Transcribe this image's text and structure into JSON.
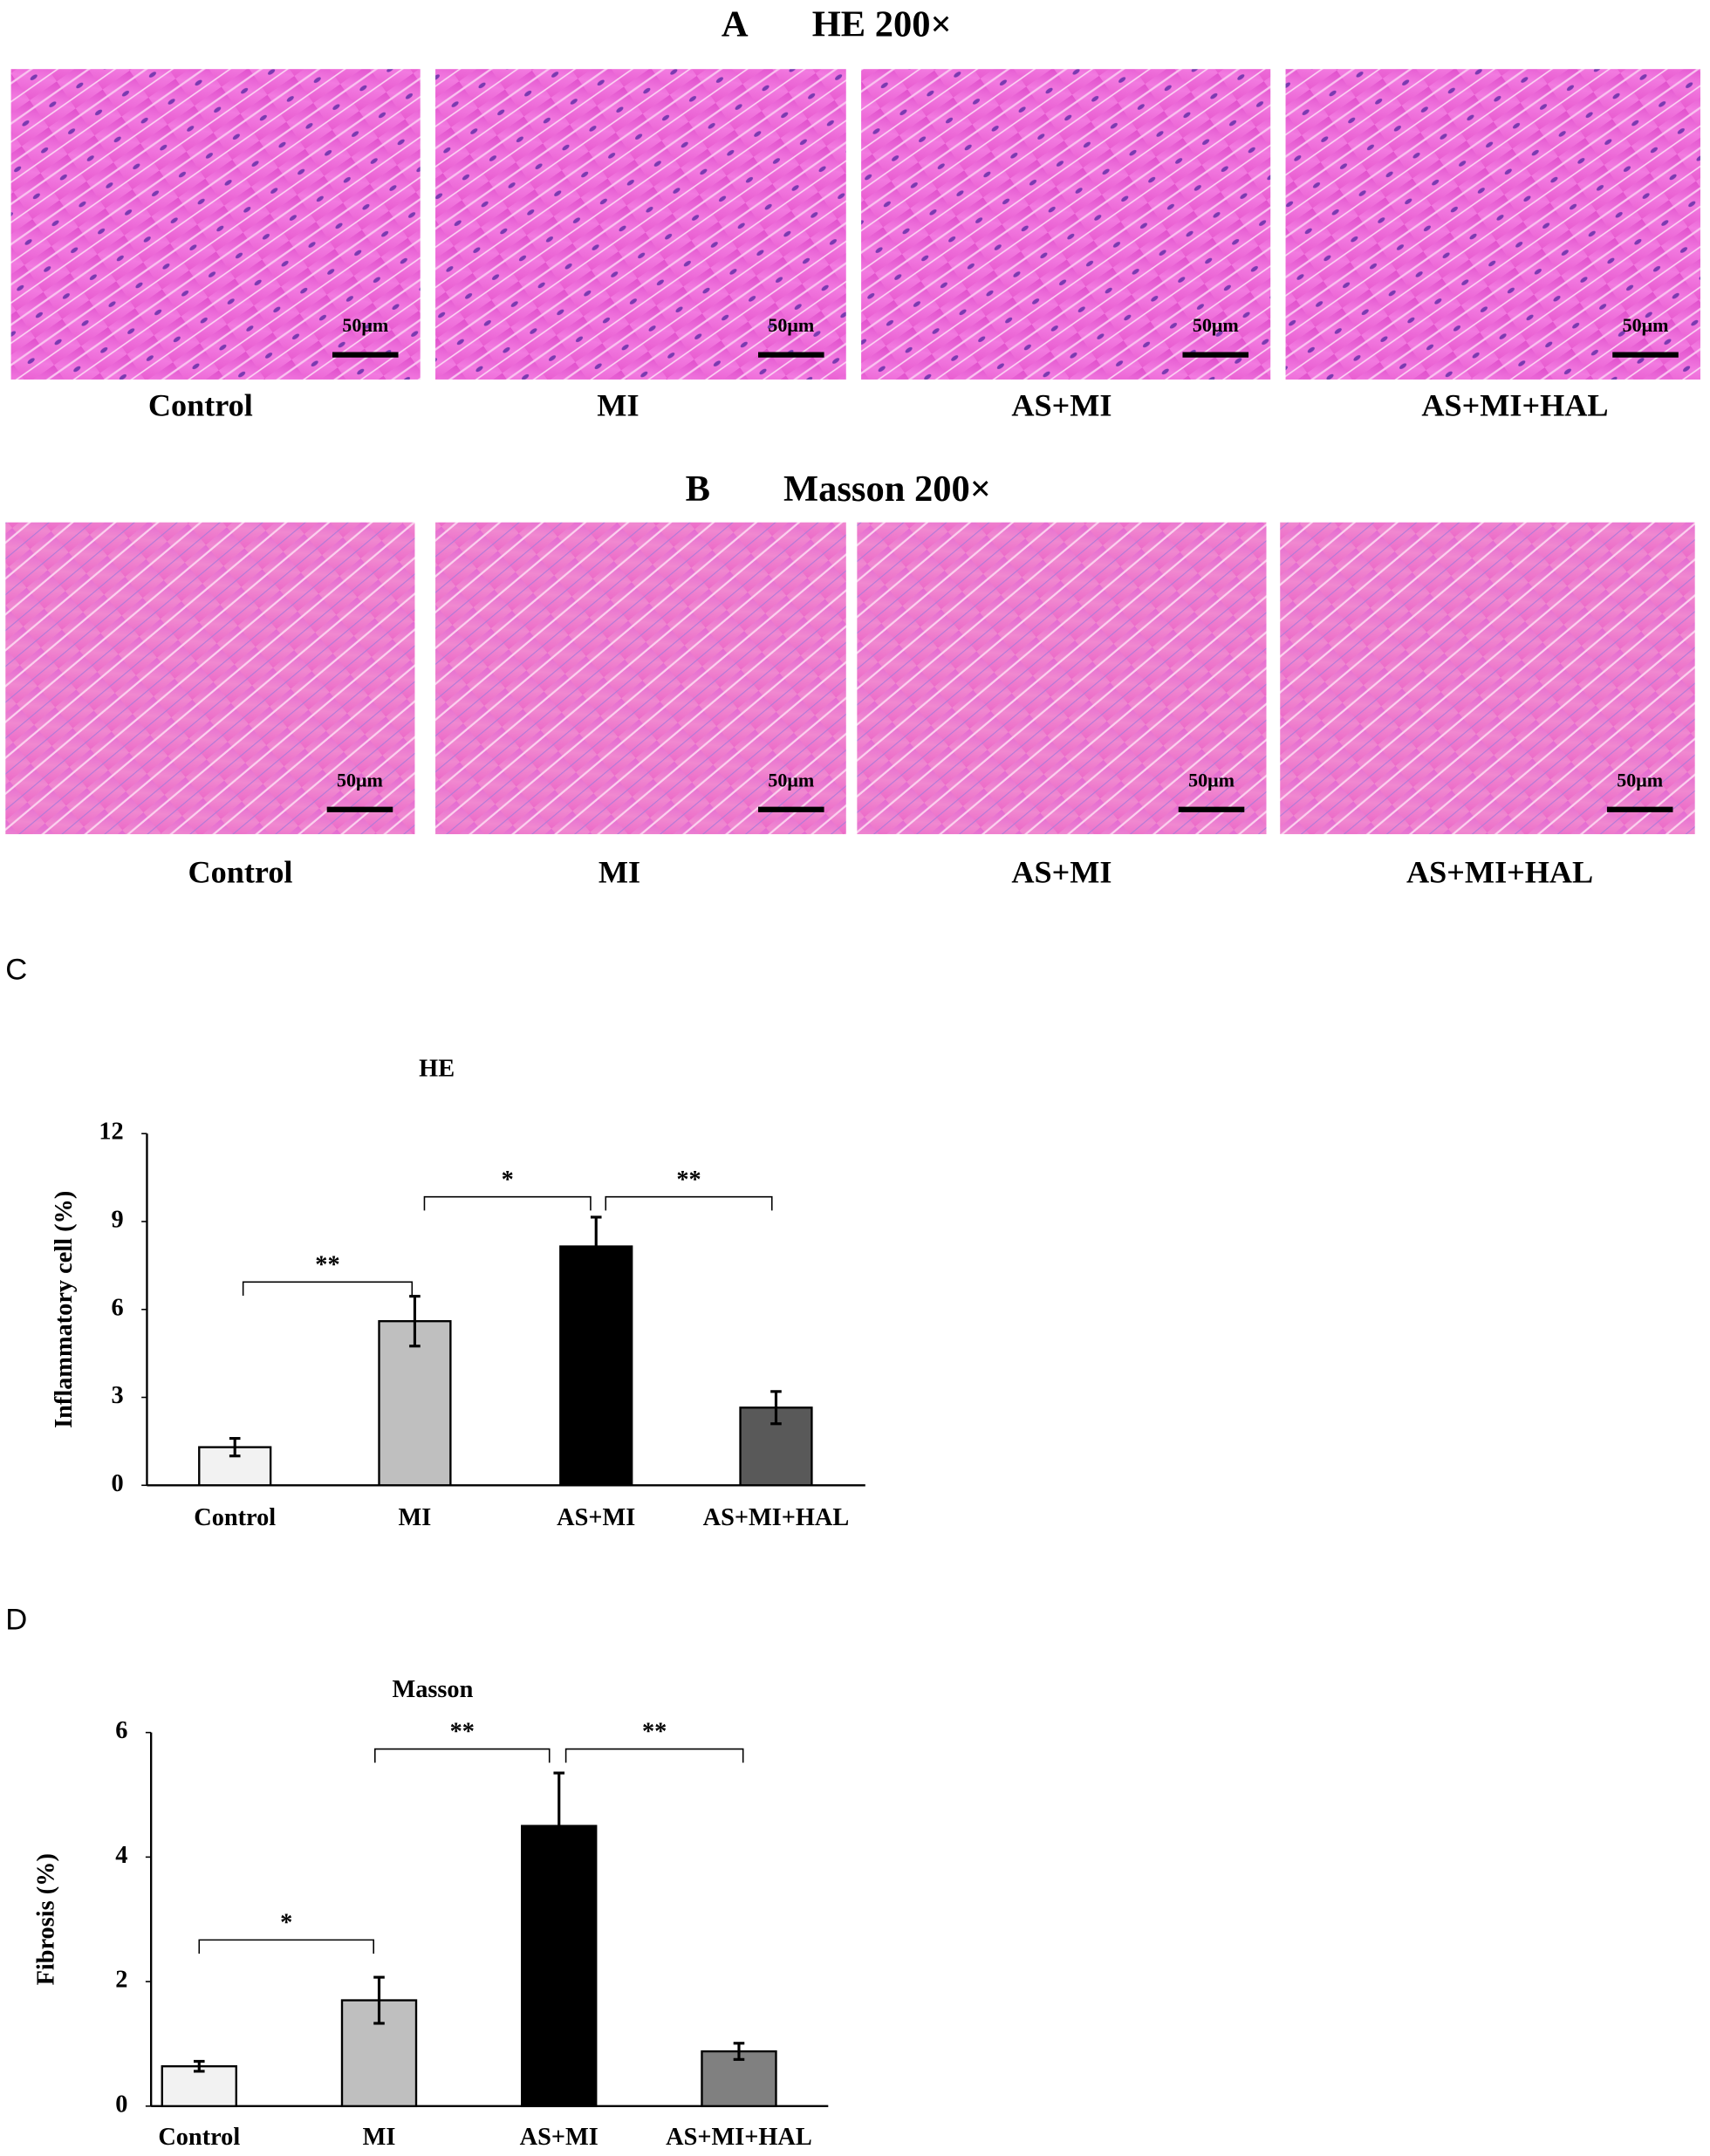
{
  "panels": [
    {
      "label": "A",
      "title": "HE 200×",
      "images": [
        {
          "label": "Control",
          "scale_bar": "50μm"
        },
        {
          "label": "MI",
          "scale_bar": "50μm"
        },
        {
          "label": "AS+MI",
          "scale_bar": "50μm"
        },
        {
          "label": "AS+MI+HAL",
          "scale_bar": "50μm"
        }
      ]
    },
    {
      "label": "B",
      "title": "Masson 200×",
      "images": [
        {
          "label": "Control",
          "scale_bar": "50μm"
        },
        {
          "label": "MI",
          "scale_bar": "50μm"
        },
        {
          "label": "AS+MI",
          "scale_bar": "50μm"
        },
        {
          "label": "AS+MI+HAL",
          "scale_bar": "50μm"
        }
      ]
    }
  ],
  "chart_data": [
    {
      "panel": "C",
      "type": "bar",
      "title": "HE",
      "y_label": "Inflammatory cell (%)",
      "categories": [
        "Control",
        "MI",
        "AS+MI",
        "AS+MI+HAL"
      ],
      "values": [
        1.3,
        5.6,
        8.15,
        2.65
      ],
      "errors": [
        0.3,
        0.85,
        1.0,
        0.55
      ],
      "colors": [
        "#f2f2f2",
        "#bfbfbf",
        "#000000",
        "#595959"
      ],
      "ylim": [
        0,
        12
      ],
      "yticks": [
        0,
        3,
        6,
        9,
        12
      ],
      "annotations": [
        "**",
        "*",
        "**"
      ]
    },
    {
      "panel": "D",
      "type": "bar",
      "title": "Masson",
      "y_label": "Fibrosis (%)",
      "categories": [
        "Control",
        "MI",
        "AS+MI",
        "AS+MI+HAL"
      ],
      "values": [
        0.64,
        1.7,
        4.5,
        0.88
      ],
      "errors": [
        0.08,
        0.37,
        0.85,
        0.13
      ],
      "colors": [
        "#f2f2f2",
        "#bfbfbf",
        "#000000",
        "#808080"
      ],
      "ylim": [
        0,
        6
      ],
      "yticks": [
        0,
        2,
        4,
        6
      ],
      "annotations": [
        "*",
        "**",
        "**"
      ]
    }
  ]
}
